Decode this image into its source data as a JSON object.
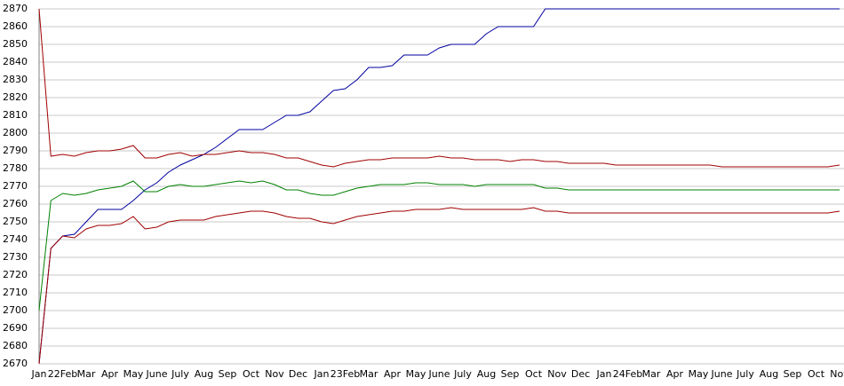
{
  "chart_data": {
    "type": "line",
    "categories": [
      "Jan",
      null,
      "22Feb",
      null,
      "Mar",
      null,
      "Apr",
      null,
      "May",
      null,
      "June",
      null,
      "July",
      null,
      "Aug",
      null,
      "Sep",
      null,
      "Oct",
      null,
      "Nov",
      null,
      "Dec",
      null,
      "Jan",
      null,
      "23Feb",
      null,
      "Mar",
      null,
      "Apr",
      null,
      "May",
      null,
      "June",
      null,
      "July",
      null,
      "Aug",
      null,
      "Sep",
      null,
      "Oct",
      null,
      "Nov",
      null,
      "Dec",
      null,
      "Jan",
      null,
      "24Feb",
      null,
      "Mar",
      null,
      "Apr",
      null,
      "May",
      null,
      "June",
      null,
      "July",
      null,
      "Aug",
      null,
      "Sep",
      null,
      "Oct",
      null,
      "Nov"
    ],
    "series": [
      {
        "color": "#0000a0",
        "values": [
          2670,
          2735,
          2742,
          2743,
          2750,
          2757,
          2757,
          2757,
          2762,
          2768,
          2772,
          2778,
          2782,
          2785,
          2788,
          2792,
          2797,
          2802,
          2802,
          2802,
          2806,
          2810,
          2810,
          2812,
          2818,
          2824,
          2825,
          2830,
          2837,
          2837,
          2838,
          2844,
          2844,
          2844,
          2848,
          2850,
          2850,
          2850,
          2856,
          2860,
          2860,
          2860,
          2860,
          2870,
          2870,
          2870,
          2870,
          2870,
          2870,
          2870,
          2870,
          2870,
          2870,
          2870,
          2870,
          2870,
          2870,
          2870,
          2870,
          2870,
          2870,
          2870,
          2870,
          2870,
          2870,
          2870,
          2870,
          2870,
          2870
        ]
      },
      {
        "color": "#a00000",
        "values": [
          2870,
          2787,
          2788,
          2787,
          2789,
          2790,
          2790,
          2791,
          2793,
          2786,
          2786,
          2788,
          2789,
          2787,
          2788,
          2788,
          2789,
          2790,
          2789,
          2789,
          2788,
          2786,
          2786,
          2784,
          2782,
          2781,
          2783,
          2784,
          2785,
          2785,
          2786,
          2786,
          2786,
          2786,
          2787,
          2786,
          2786,
          2785,
          2785,
          2785,
          2784,
          2785,
          2785,
          2784,
          2784,
          2783,
          2783,
          2783,
          2783,
          2782,
          2782,
          2782,
          2782,
          2782,
          2782,
          2782,
          2782,
          2782,
          2781,
          2781,
          2781,
          2781,
          2781,
          2781,
          2781,
          2781,
          2781,
          2781,
          2782
        ]
      },
      {
        "color": "#008000",
        "values": [
          2700,
          2762,
          2766,
          2765,
          2766,
          2768,
          2769,
          2770,
          2773,
          2767,
          2767,
          2770,
          2771,
          2770,
          2770,
          2771,
          2772,
          2773,
          2772,
          2773,
          2771,
          2768,
          2768,
          2766,
          2765,
          2765,
          2767,
          2769,
          2770,
          2771,
          2771,
          2771,
          2772,
          2772,
          2771,
          2771,
          2771,
          2770,
          2771,
          2771,
          2771,
          2771,
          2771,
          2769,
          2769,
          2768,
          2768,
          2768,
          2768,
          2768,
          2768,
          2768,
          2768,
          2768,
          2768,
          2768,
          2768,
          2768,
          2768,
          2768,
          2768,
          2768,
          2768,
          2768,
          2768,
          2768,
          2768,
          2768,
          2768
        ]
      },
      {
        "color": "#a00000",
        "values": [
          2670,
          2735,
          2742,
          2741,
          2746,
          2748,
          2748,
          2749,
          2753,
          2746,
          2747,
          2750,
          2751,
          2751,
          2751,
          2753,
          2754,
          2755,
          2756,
          2756,
          2755,
          2753,
          2752,
          2752,
          2750,
          2749,
          2751,
          2753,
          2754,
          2755,
          2756,
          2756,
          2757,
          2757,
          2757,
          2758,
          2757,
          2757,
          2757,
          2757,
          2757,
          2757,
          2758,
          2756,
          2756,
          2755,
          2755,
          2755,
          2755,
          2755,
          2755,
          2755,
          2755,
          2755,
          2755,
          2755,
          2755,
          2755,
          2755,
          2755,
          2755,
          2755,
          2755,
          2755,
          2755,
          2755,
          2755,
          2755,
          2756
        ]
      }
    ],
    "ylim": [
      2670,
      2870
    ],
    "yticks": [
      2670,
      2680,
      2690,
      2700,
      2710,
      2720,
      2730,
      2740,
      2750,
      2760,
      2770,
      2780,
      2790,
      2800,
      2810,
      2820,
      2830,
      2840,
      2850,
      2860,
      2870
    ],
    "grid": true
  }
}
